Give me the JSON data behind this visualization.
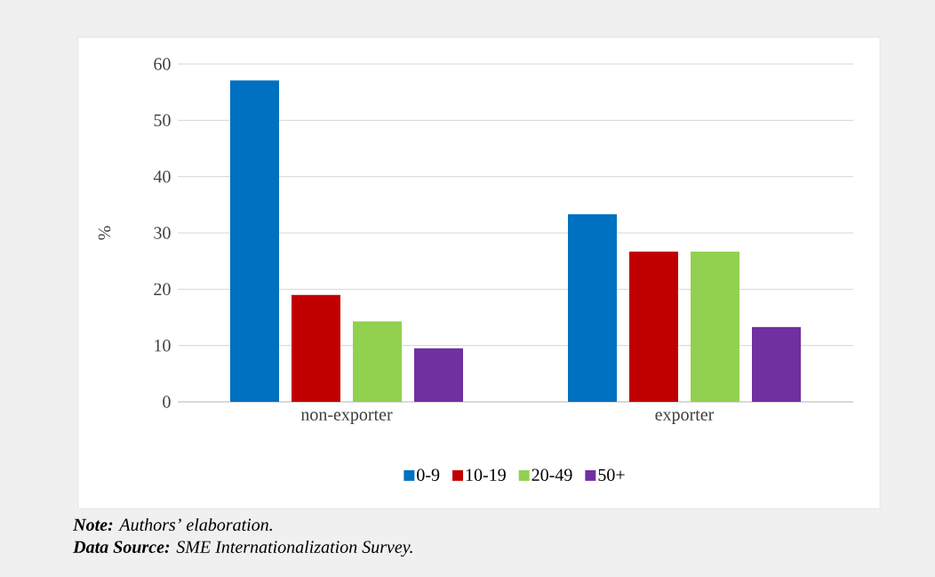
{
  "chart_data": {
    "type": "bar",
    "ylabel": "%",
    "categories": [
      "non-exporter",
      "exporter"
    ],
    "series": [
      {
        "name": "0-9",
        "color": "#0070c0",
        "values": [
          57.1,
          33.3
        ]
      },
      {
        "name": "10-19",
        "color": "#c00000",
        "values": [
          19.0,
          26.7
        ]
      },
      {
        "name": "20-49",
        "color": "#92d050",
        "values": [
          14.3,
          26.7
        ]
      },
      {
        "name": "50+",
        "color": "#7030a0",
        "values": [
          9.5,
          13.3
        ]
      }
    ],
    "ylim": [
      0,
      60
    ],
    "yticks": [
      0,
      10,
      20,
      30,
      40,
      50,
      60
    ],
    "grid": "y",
    "legend": "bottom",
    "annotations": [
      "**Note:** Authors’ elaboration.",
      "**Data Source:** SME Internationalization Survey."
    ]
  }
}
